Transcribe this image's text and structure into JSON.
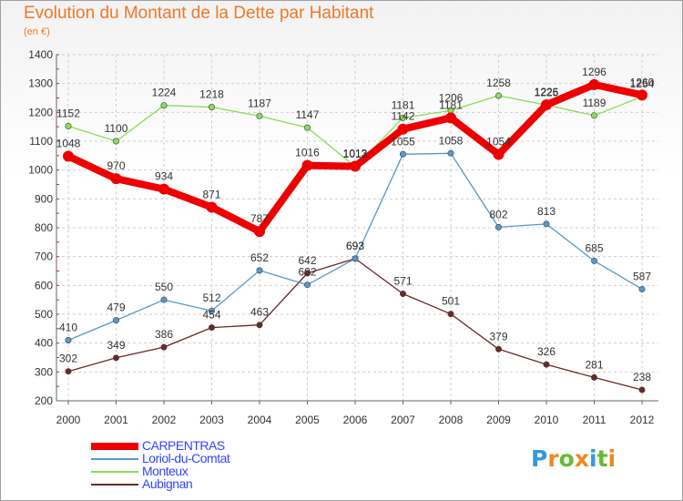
{
  "title": "Evolution du Montant de la Dette par Habitant",
  "unit": "(en €)",
  "chart_data": {
    "type": "line",
    "title": "Evolution du Montant de la Dette par Habitant",
    "ylabel": "(en €)",
    "xlabel": "",
    "ylim": [
      200,
      1400
    ],
    "yticks": [
      200,
      300,
      400,
      500,
      600,
      700,
      800,
      900,
      1000,
      1100,
      1200,
      1300,
      1400
    ],
    "x": [
      "2000",
      "2001",
      "2002",
      "2003",
      "2004",
      "2005",
      "2006",
      "2007",
      "2008",
      "2009",
      "2010",
      "2011",
      "2012"
    ],
    "grid": true,
    "legend": "bottom-left",
    "series": [
      {
        "name": "CARPENTRAS",
        "color": "#ee0000",
        "values": [
          1048,
          970,
          934,
          871,
          787,
          1016,
          1013,
          1142,
          1181,
          1054,
          1226,
          1296,
          1260
        ]
      },
      {
        "name": "Loriol-du-Comtat",
        "color": "#5599cc",
        "values": [
          410,
          479,
          550,
          512,
          652,
          602,
          693,
          1055,
          1058,
          802,
          813,
          685,
          587
        ]
      },
      {
        "name": "Monteux",
        "color": "#88dd55",
        "values": [
          1152,
          1100,
          1224,
          1218,
          1187,
          1147,
          1012,
          1181,
          1206,
          1258,
          1225,
          1189,
          1254
        ]
      },
      {
        "name": "Aubignan",
        "color": "#6b2828",
        "values": [
          302,
          349,
          386,
          454,
          463,
          642,
          693,
          571,
          501,
          379,
          326,
          281,
          238
        ]
      }
    ]
  },
  "logo": {
    "letters": [
      "P",
      "r",
      "o",
      "x",
      "i",
      "t",
      "i"
    ],
    "colors": [
      "#3399dd",
      "#ee8822",
      "#66bb33",
      "#ee8822",
      "#3399dd",
      "#66bb33",
      "#ee8822"
    ]
  }
}
